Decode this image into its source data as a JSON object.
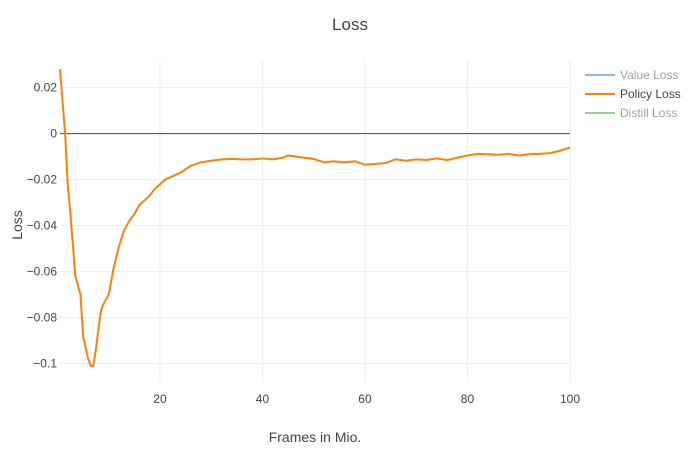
{
  "chart_data": {
    "type": "line",
    "title": "Loss",
    "xlabel": "Frames in Mio.",
    "ylabel": "Loss",
    "xlim": [
      0.5,
      100
    ],
    "ylim": [
      -0.108,
      0.032
    ],
    "xticks": [
      20,
      40,
      60,
      80,
      100
    ],
    "yticks": [
      0.02,
      0,
      -0.02,
      -0.04,
      -0.06,
      -0.08,
      -0.1
    ],
    "xtick_labels": [
      "20",
      "40",
      "60",
      "80",
      "100"
    ],
    "ytick_labels": [
      "0.02",
      "0",
      "−0.02",
      "−0.04",
      "−0.06",
      "−0.08",
      "−0.1"
    ],
    "grid": true,
    "zero_line": true,
    "legend_position": "top-right",
    "series": [
      {
        "name": "Value Loss",
        "color": "#1f77b4",
        "visible": false,
        "x": [],
        "y": []
      },
      {
        "name": "Policy Loss",
        "color": "#ff7f0e",
        "visible": true,
        "x": [
          0.5,
          1,
          1.5,
          2,
          2.5,
          3,
          3.5,
          4,
          4.5,
          5,
          5.5,
          6,
          6.5,
          7,
          7.5,
          8,
          8.5,
          9,
          9.5,
          10,
          11,
          12,
          13,
          14,
          15,
          16,
          17,
          18,
          19,
          20,
          21,
          22,
          23,
          24,
          25,
          26,
          28,
          30,
          32,
          34,
          36,
          38,
          40,
          42,
          44,
          45,
          46,
          48,
          50,
          52,
          54,
          56,
          58,
          60,
          62,
          64,
          66,
          68,
          70,
          72,
          74,
          76,
          78,
          80,
          82,
          84,
          86,
          88,
          90,
          92,
          94,
          96,
          98,
          100
        ],
        "y": [
          0.028,
          0.014,
          0.0,
          -0.022,
          -0.034,
          -0.048,
          -0.062,
          -0.066,
          -0.07,
          -0.088,
          -0.093,
          -0.098,
          -0.101,
          -0.101,
          -0.094,
          -0.085,
          -0.077,
          -0.074,
          -0.072,
          -0.07,
          -0.058,
          -0.049,
          -0.042,
          -0.038,
          -0.035,
          -0.031,
          -0.029,
          -0.027,
          -0.024,
          -0.022,
          -0.02,
          -0.019,
          -0.018,
          -0.017,
          -0.0155,
          -0.014,
          -0.0125,
          -0.0118,
          -0.0112,
          -0.011,
          -0.0112,
          -0.0112,
          -0.0108,
          -0.0112,
          -0.0105,
          -0.0095,
          -0.0098,
          -0.0105,
          -0.011,
          -0.0125,
          -0.012,
          -0.0125,
          -0.012,
          -0.0135,
          -0.0132,
          -0.0128,
          -0.0112,
          -0.0118,
          -0.0112,
          -0.0115,
          -0.0108,
          -0.0115,
          -0.0105,
          -0.0095,
          -0.0088,
          -0.009,
          -0.0092,
          -0.0088,
          -0.0095,
          -0.009,
          -0.0088,
          -0.0085,
          -0.0075,
          -0.006
        ]
      },
      {
        "name": "Distill Loss",
        "color": "#2ca02c",
        "visible": false,
        "x": [],
        "y": []
      }
    ]
  }
}
